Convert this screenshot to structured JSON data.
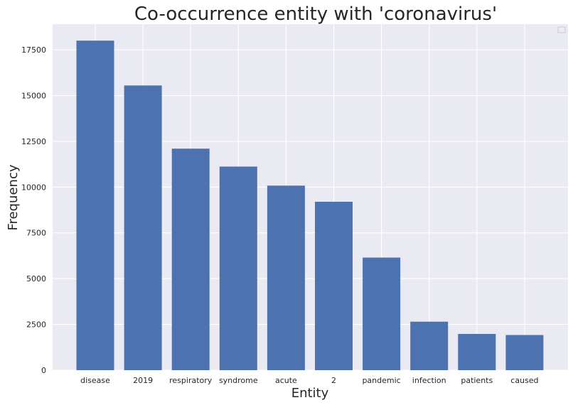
{
  "chart_data": {
    "type": "bar",
    "title": "Co-occurrence entity with 'coronavirus'",
    "xlabel": "Entity",
    "ylabel": "Frequency",
    "categories": [
      "disease",
      "2019",
      "respiratory",
      "syndrome",
      "acute",
      "2",
      "pandemic",
      "infection",
      "patients",
      "caused"
    ],
    "values": [
      18000,
      15550,
      12100,
      11120,
      10080,
      9200,
      6150,
      2650,
      1980,
      1920
    ],
    "ylim": [
      0,
      18900
    ],
    "yticks": [
      0,
      2500,
      5000,
      7500,
      10000,
      12500,
      15000,
      17500
    ],
    "ytick_labels": [
      "0",
      "2500",
      "5000",
      "7500",
      "10000",
      "12500",
      "15000",
      "17500"
    ],
    "grid": true,
    "legend": {
      "position": "top-right",
      "entries": []
    },
    "colors": {
      "bar": "#4c72b0",
      "background": "#eaeaf2",
      "grid": "#ffffff"
    }
  }
}
